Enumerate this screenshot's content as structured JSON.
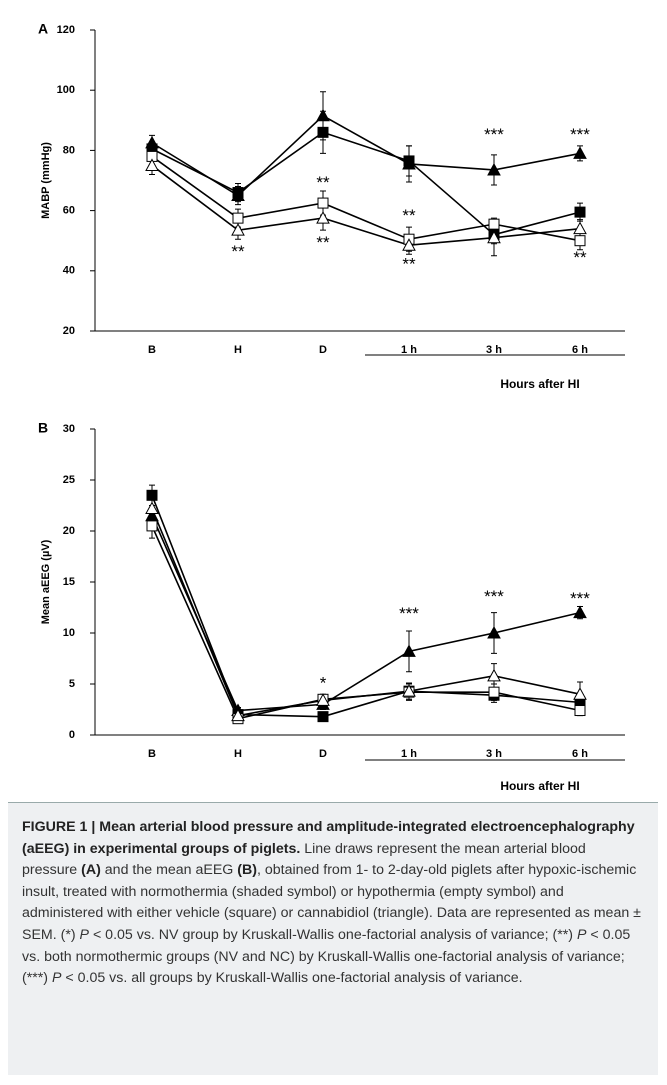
{
  "chart_data": [
    {
      "type": "line",
      "panel": "A",
      "ylabel": "MABP (mmHg)",
      "xlabel": "Hours after HI",
      "categories": [
        "B",
        "H",
        "D",
        "1 h",
        "3 h",
        "6 h"
      ],
      "ylim": [
        20,
        120
      ],
      "yticks": [
        20,
        40,
        60,
        80,
        100,
        120
      ],
      "series": [
        {
          "marker": "square",
          "filled": true,
          "color": "#000000",
          "values": [
            80.5,
            66,
            86,
            76.5,
            52,
            59.5
          ],
          "errors": [
            2,
            3,
            7,
            5,
            3,
            3
          ]
        },
        {
          "marker": "triangle",
          "filled": true,
          "color": "#000000",
          "values": [
            82.5,
            65,
            91.5,
            75.5,
            73.5,
            79
          ],
          "errors": [
            2.5,
            3,
            8,
            6,
            5,
            2.5
          ]
        },
        {
          "marker": "square",
          "filled": false,
          "color": "#000000",
          "values": [
            78,
            57.5,
            62.5,
            50.5,
            55.5,
            50
          ],
          "errors": [
            3,
            3,
            4,
            4,
            2,
            3
          ]
        },
        {
          "marker": "triangle",
          "filled": false,
          "color": "#000000",
          "values": [
            75,
            53.5,
            57.5,
            48.5,
            51,
            54
          ],
          "errors": [
            3,
            3,
            4,
            3,
            6,
            3
          ]
        }
      ],
      "annotations": [
        {
          "text": "**",
          "category": 1,
          "y": 46
        },
        {
          "text": "**",
          "category": 2,
          "y": 69
        },
        {
          "text": "**",
          "category": 2,
          "y": 49
        },
        {
          "text": "**",
          "category": 3,
          "y": 58
        },
        {
          "text": "**",
          "category": 3,
          "y": 42
        },
        {
          "text": "***",
          "category": 4,
          "y": 85
        },
        {
          "text": "***",
          "category": 5,
          "y": 85
        },
        {
          "text": "**",
          "category": 5,
          "y": 44
        }
      ]
    },
    {
      "type": "line",
      "panel": "B",
      "ylabel": "Mean aEEG (µV)",
      "xlabel": "Hours after HI",
      "categories": [
        "B",
        "H",
        "D",
        "1 h",
        "3 h",
        "6 h"
      ],
      "ylim": [
        0,
        30
      ],
      "yticks": [
        0,
        5,
        10,
        15,
        20,
        25,
        30
      ],
      "series": [
        {
          "marker": "square",
          "filled": true,
          "color": "#000000",
          "values": [
            23.5,
            2,
            1.8,
            4.3,
            3.9,
            3.2
          ],
          "errors": [
            1,
            0.3,
            0.3,
            0.8,
            0.7,
            0.5
          ]
        },
        {
          "marker": "triangle",
          "filled": true,
          "color": "#000000",
          "values": [
            21.5,
            2.4,
            3,
            8.2,
            10,
            12
          ],
          "errors": [
            1,
            0.3,
            0.5,
            2,
            2,
            0.6
          ]
        },
        {
          "marker": "square",
          "filled": false,
          "color": "#000000",
          "values": [
            20.5,
            1.6,
            3.5,
            4.2,
            4.2,
            2.4
          ],
          "errors": [
            1.2,
            0.3,
            0.5,
            0.8,
            0.8,
            0.5
          ]
        },
        {
          "marker": "triangle",
          "filled": false,
          "color": "#000000",
          "values": [
            22.2,
            1.9,
            3.4,
            4.3,
            5.8,
            4.0
          ],
          "errors": [
            1,
            0.3,
            0.5,
            0.8,
            1.2,
            1.2
          ]
        }
      ],
      "annotations": [
        {
          "text": "*",
          "category": 2,
          "y": 5
        },
        {
          "text": "***",
          "category": 3,
          "y": 11.8
        },
        {
          "text": "***",
          "category": 4,
          "y": 13.5
        },
        {
          "text": "***",
          "category": 5,
          "y": 13.3
        }
      ]
    }
  ],
  "caption": [
    {
      "text": "FIGURE 1 | Mean arterial blood pressure and amplitude-integrated electroencephalography (aEEG) in experimental groups of piglets.",
      "style": "bold"
    },
    {
      "text": " Line draws represent the mean arterial blood pressure ",
      "style": "normal"
    },
    {
      "text": "(A)",
      "style": "bold"
    },
    {
      "text": " and the mean aEEG ",
      "style": "normal"
    },
    {
      "text": "(B)",
      "style": "bold"
    },
    {
      "text": ", obtained from 1- to 2-day-old piglets after hypoxic-ischemic insult, treated with normothermia (shaded symbol) or hypothermia (empty symbol) and administered with either vehicle (square) or cannabidiol (triangle). Data are represented as mean ± SEM. (*) ",
      "style": "normal"
    },
    {
      "text": "P",
      "style": "italic"
    },
    {
      "text": " < 0.05 vs. NV group by Kruskall-Wallis one-factorial analysis of variance; (**) ",
      "style": "normal"
    },
    {
      "text": "P",
      "style": "italic"
    },
    {
      "text": " < 0.05 vs. both normothermic groups (NV and NC) by Kruskall-Wallis one-factorial analysis of variance; (***) ",
      "style": "normal"
    },
    {
      "text": "P",
      "style": "italic"
    },
    {
      "text": " < 0.05 vs. all groups by Kruskall-Wallis one-factorial analysis of variance.",
      "style": "normal"
    }
  ]
}
